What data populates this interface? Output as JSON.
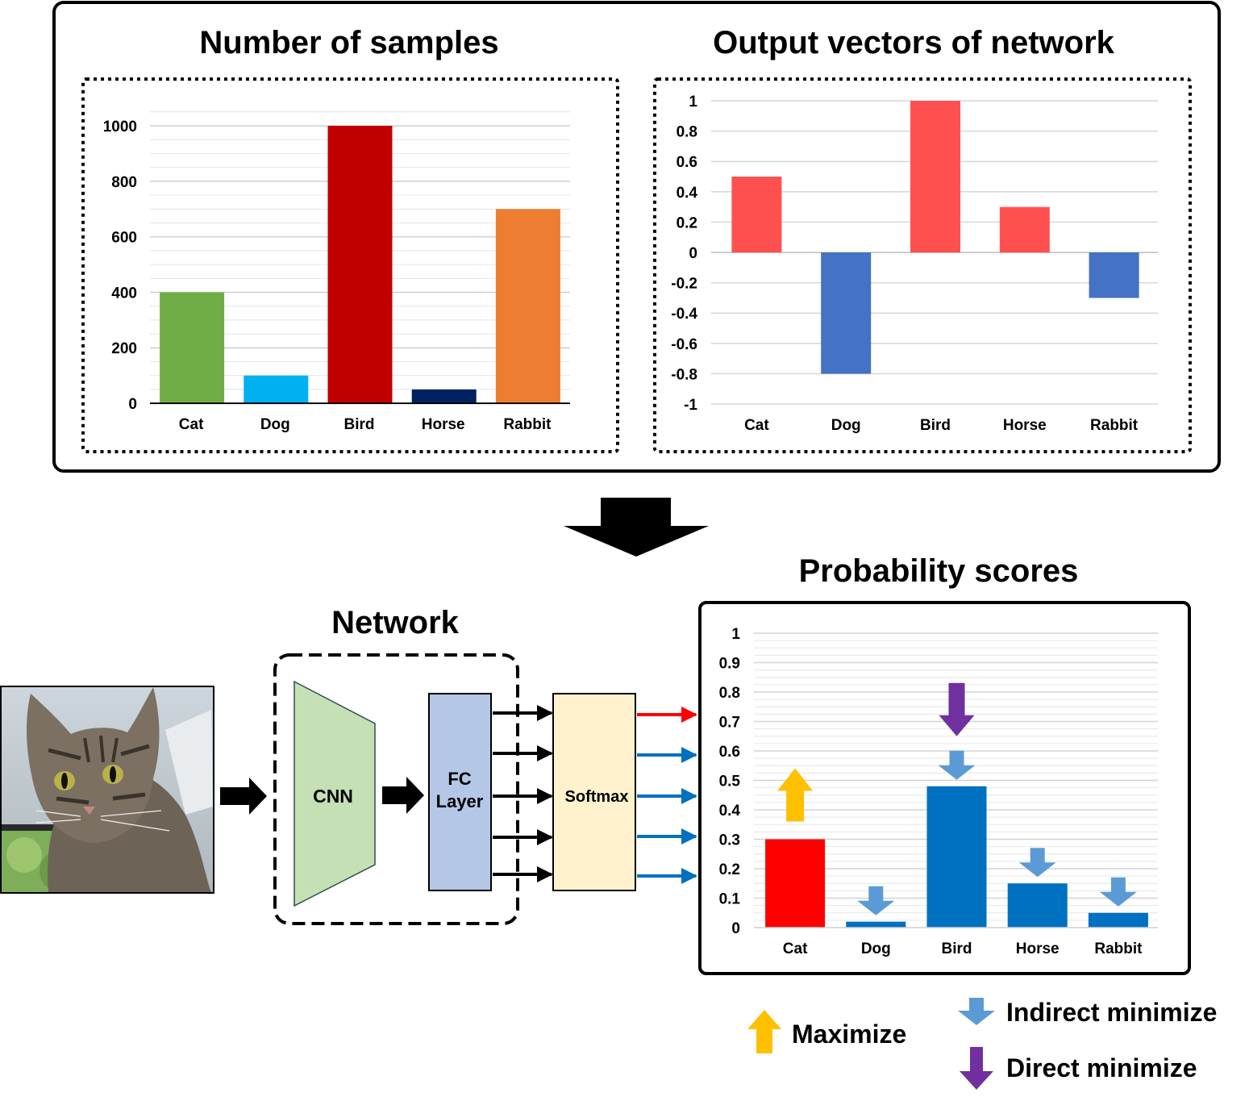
{
  "top_panel": {
    "left_title": "Number of samples",
    "right_title": "Output vectors of network"
  },
  "network": {
    "title": "Network",
    "cnn_label": "CNN",
    "fc_label_line1": "FC",
    "fc_label_line2": "Layer",
    "softmax_label": "Softmax"
  },
  "probability_title": "Probability scores",
  "legend": {
    "maximize": "Maximize",
    "indirect_minimize": "Indirect minimize",
    "direct_minimize": "Direct minimize"
  },
  "colors": {
    "maximize_arrow": "#FFC000",
    "indirect_arrow": "#5B9BD5",
    "direct_arrow": "#7030A0",
    "cnn_fill": "#C5E0B4",
    "fc_fill": "#B4C7E7",
    "softmax_fill": "#FFF2CC",
    "red_arrow": "#FF0000",
    "blue_arrow": "#0070C0"
  },
  "input_image": "cat-photo",
  "chart_data": [
    {
      "type": "bar",
      "title": "Number of samples",
      "categories": [
        "Cat",
        "Dog",
        "Bird",
        "Horse",
        "Rabbit"
      ],
      "values": [
        400,
        100,
        1000,
        50,
        700
      ],
      "colors": [
        "#70AD47",
        "#00B0F0",
        "#C00000",
        "#002060",
        "#ED7D31"
      ],
      "yticks": [
        0,
        200,
        400,
        600,
        800,
        1000
      ],
      "ylim": [
        0,
        1050
      ],
      "grid": true
    },
    {
      "type": "bar",
      "title": "Output vectors of network",
      "categories": [
        "Cat",
        "Dog",
        "Bird",
        "Horse",
        "Rabbit"
      ],
      "values": [
        0.5,
        -0.8,
        1.0,
        0.3,
        -0.3
      ],
      "positive_color": "#FF5050",
      "negative_color": "#4472C4",
      "yticks": [
        "1",
        "0.8",
        "0.6",
        "0.4",
        "0.2",
        "0",
        "-0.2",
        "-0.4",
        "-0.6",
        "-0.8",
        "-1"
      ],
      "ylim": [
        -1,
        1
      ],
      "grid": true
    },
    {
      "type": "bar",
      "title": "Probability scores",
      "categories": [
        "Cat",
        "Dog",
        "Bird",
        "Horse",
        "Rabbit"
      ],
      "values": [
        0.3,
        0.02,
        0.48,
        0.15,
        0.05
      ],
      "colors": [
        "#FF0000",
        "#0070C0",
        "#0070C0",
        "#0070C0",
        "#0070C0"
      ],
      "yticks": [
        "0",
        "0.1",
        "0.2",
        "0.3",
        "0.4",
        "0.5",
        "0.6",
        "0.7",
        "0.8",
        "0.9",
        "1"
      ],
      "ylim": [
        0,
        1
      ],
      "grid": true,
      "annotations": [
        "maximize",
        "indirect",
        "direct+indirect",
        "indirect",
        "indirect"
      ]
    }
  ]
}
